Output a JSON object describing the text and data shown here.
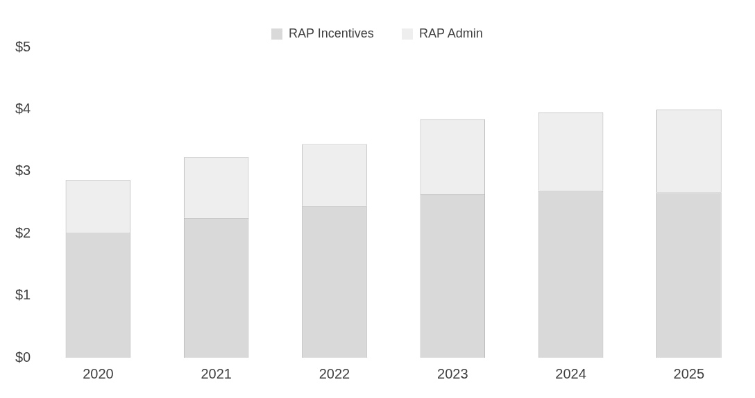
{
  "chart_data": {
    "type": "bar",
    "stacked": true,
    "categories": [
      "2020",
      "2021",
      "2022",
      "2023",
      "2024",
      "2025"
    ],
    "series": [
      {
        "name": "RAP Incentives",
        "color": "#d9d9d9",
        "values": [
          2.01,
          2.25,
          2.44,
          2.63,
          2.69,
          2.66
        ]
      },
      {
        "name": "RAP Admin",
        "color": "#eeeeee",
        "values": [
          0.85,
          0.98,
          1.0,
          1.21,
          1.26,
          1.34
        ]
      }
    ],
    "ylim": [
      0,
      5
    ],
    "yticks": [
      {
        "value": 0,
        "label": "$0"
      },
      {
        "value": 1,
        "label": "$1"
      },
      {
        "value": 2,
        "label": "$2"
      },
      {
        "value": 3,
        "label": "$3"
      },
      {
        "value": 4,
        "label": "$4"
      },
      {
        "value": 5,
        "label": "$5"
      }
    ],
    "legend": "top"
  }
}
